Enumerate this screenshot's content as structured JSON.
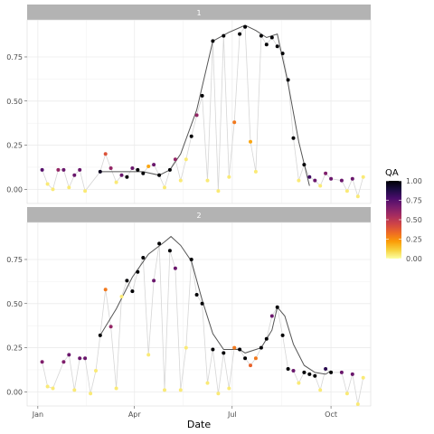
{
  "chart_data": {
    "type": "line+scatter (faceted)",
    "xlabel": "Date",
    "x_ticks": [
      {
        "label": "Jan",
        "value": 0
      },
      {
        "label": "Apr",
        "value": 90
      },
      {
        "label": "Jul",
        "value": 181
      },
      {
        "label": "Oct",
        "value": 273
      }
    ],
    "y_ticks": [
      "0.00",
      "0.25",
      "0.50",
      "0.75"
    ],
    "y_tick_values": [
      0,
      0.25,
      0.5,
      0.75
    ],
    "ylim": [
      -0.08,
      0.96
    ],
    "xlim": [
      -10,
      310
    ],
    "legend": {
      "title": "QA",
      "labels": [
        "1.00",
        "0.75",
        "0.50",
        "0.25",
        "0.00"
      ],
      "label_values": [
        1.0,
        0.75,
        0.5,
        0.25,
        0.0
      ],
      "range": [
        0,
        1
      ],
      "colors": [
        "#fcffa4",
        "#f7d13d",
        "#fb9b06",
        "#ed6925",
        "#cf4446",
        "#a52c60",
        "#781c6d",
        "#4a0c6b",
        "#1b0c41",
        "#000004"
      ]
    },
    "panels": [
      {
        "label": "1",
        "raw_series": [
          [
            4,
            0.11,
            0.75
          ],
          [
            9,
            0.03,
            0.05
          ],
          [
            14,
            0.0,
            0.05
          ],
          [
            19,
            0.11,
            0.6
          ],
          [
            24,
            0.11,
            0.7
          ],
          [
            29,
            0.01,
            0.05
          ],
          [
            34,
            0.08,
            0.7
          ],
          [
            39,
            0.11,
            0.7
          ],
          [
            44,
            -0.01,
            0.05
          ],
          [
            58,
            0.1,
            0.95
          ],
          [
            63,
            0.2,
            0.4
          ],
          [
            68,
            0.12,
            0.6
          ],
          [
            73,
            0.04,
            0.05
          ],
          [
            78,
            0.08,
            0.7
          ],
          [
            83,
            0.07,
            1.0
          ],
          [
            88,
            0.12,
            0.7
          ],
          [
            93,
            0.11,
            1.0
          ],
          [
            98,
            0.09,
            1.0
          ],
          [
            103,
            0.13,
            0.2
          ],
          [
            108,
            0.14,
            0.7
          ],
          [
            113,
            0.08,
            1.0
          ],
          [
            118,
            0.01,
            0.05
          ],
          [
            123,
            0.11,
            1.0
          ],
          [
            128,
            0.17,
            0.6
          ],
          [
            133,
            0.05,
            0.05
          ],
          [
            138,
            0.17,
            0.05
          ],
          [
            143,
            0.3,
            1.0
          ],
          [
            148,
            0.42,
            0.6
          ],
          [
            153,
            0.53,
            1.0
          ],
          [
            158,
            0.05,
            0.05
          ],
          [
            163,
            0.84,
            1.0
          ],
          [
            168,
            -0.01,
            0.05
          ],
          [
            173,
            0.87,
            1.0
          ],
          [
            178,
            0.07,
            0.05
          ],
          [
            183,
            0.38,
            0.3
          ],
          [
            188,
            0.88,
            1.0
          ],
          [
            193,
            0.92,
            1.0
          ],
          [
            198,
            0.27,
            0.2
          ],
          [
            203,
            0.1,
            0.05
          ],
          [
            208,
            0.87,
            1.0
          ],
          [
            213,
            0.82,
            1.0
          ],
          [
            218,
            0.86,
            1.0
          ],
          [
            223,
            0.81,
            1.0
          ],
          [
            228,
            0.77,
            1.0
          ],
          [
            233,
            0.62,
            1.0
          ],
          [
            238,
            0.29,
            1.0
          ],
          [
            243,
            0.05,
            0.05
          ],
          [
            248,
            0.14,
            1.0
          ],
          [
            253,
            0.07,
            0.8
          ],
          [
            258,
            0.05,
            0.7
          ],
          [
            263,
            0.02,
            0.05
          ],
          [
            268,
            0.09,
            0.65
          ],
          [
            273,
            0.06,
            0.7
          ],
          [
            283,
            0.05,
            0.7
          ],
          [
            288,
            -0.01,
            0.05
          ],
          [
            293,
            0.06,
            0.7
          ],
          [
            298,
            -0.04,
            0.05
          ],
          [
            303,
            0.07,
            0.05
          ]
        ],
        "smooth": [
          [
            58,
            0.1
          ],
          [
            80,
            0.1
          ],
          [
            98,
            0.1
          ],
          [
            113,
            0.08
          ],
          [
            123,
            0.11
          ],
          [
            133,
            0.2
          ],
          [
            148,
            0.45
          ],
          [
            163,
            0.84
          ],
          [
            178,
            0.89
          ],
          [
            193,
            0.93
          ],
          [
            203,
            0.9
          ],
          [
            213,
            0.86
          ],
          [
            223,
            0.88
          ],
          [
            233,
            0.6
          ],
          [
            243,
            0.27
          ],
          [
            253,
            0.02
          ]
        ]
      },
      {
        "label": "2",
        "raw_series": [
          [
            4,
            0.17,
            0.65
          ],
          [
            9,
            0.03,
            0.05
          ],
          [
            14,
            0.02,
            0.05
          ],
          [
            24,
            0.17,
            0.65
          ],
          [
            29,
            0.21,
            0.7
          ],
          [
            34,
            0.01,
            0.05
          ],
          [
            39,
            0.19,
            0.7
          ],
          [
            44,
            0.19,
            0.7
          ],
          [
            49,
            -0.01,
            0.05
          ],
          [
            54,
            0.12,
            0.05
          ],
          [
            58,
            0.32,
            1.0
          ],
          [
            63,
            0.58,
            0.3
          ],
          [
            68,
            0.37,
            0.6
          ],
          [
            73,
            0.02,
            0.05
          ],
          [
            78,
            0.54,
            0.05
          ],
          [
            83,
            0.63,
            1.0
          ],
          [
            88,
            0.57,
            1.0
          ],
          [
            93,
            0.68,
            1.0
          ],
          [
            98,
            0.76,
            1.0
          ],
          [
            103,
            0.21,
            0.05
          ],
          [
            108,
            0.63,
            0.7
          ],
          [
            113,
            0.84,
            1.0
          ],
          [
            118,
            0.01,
            0.05
          ],
          [
            123,
            0.8,
            1.0
          ],
          [
            128,
            0.7,
            0.7
          ],
          [
            133,
            0.01,
            0.05
          ],
          [
            138,
            0.25,
            0.05
          ],
          [
            143,
            0.75,
            1.0
          ],
          [
            148,
            0.55,
            1.0
          ],
          [
            153,
            0.5,
            1.0
          ],
          [
            158,
            0.05,
            0.05
          ],
          [
            163,
            0.24,
            1.0
          ],
          [
            168,
            -0.01,
            0.05
          ],
          [
            173,
            0.22,
            1.0
          ],
          [
            178,
            0.02,
            0.05
          ],
          [
            183,
            0.25,
            0.3
          ],
          [
            188,
            0.24,
            1.0
          ],
          [
            193,
            0.19,
            1.0
          ],
          [
            198,
            0.15,
            0.35
          ],
          [
            203,
            0.19,
            0.3
          ],
          [
            208,
            0.25,
            1.0
          ],
          [
            213,
            0.3,
            1.0
          ],
          [
            218,
            0.43,
            0.7
          ],
          [
            223,
            0.48,
            1.0
          ],
          [
            228,
            0.32,
            1.0
          ],
          [
            233,
            0.13,
            1.0
          ],
          [
            238,
            0.12,
            0.7
          ],
          [
            243,
            0.05,
            0.05
          ],
          [
            248,
            0.11,
            1.0
          ],
          [
            253,
            0.1,
            1.0
          ],
          [
            258,
            0.09,
            1.0
          ],
          [
            263,
            0.01,
            0.05
          ],
          [
            268,
            0.13,
            0.85
          ],
          [
            273,
            0.11,
            1.0
          ],
          [
            283,
            0.11,
            0.7
          ],
          [
            288,
            -0.01,
            0.05
          ],
          [
            293,
            0.1,
            0.7
          ],
          [
            298,
            -0.07,
            0.05
          ],
          [
            303,
            0.08,
            0.05
          ]
        ],
        "smooth": [
          [
            58,
            0.32
          ],
          [
            73,
            0.47
          ],
          [
            88,
            0.65
          ],
          [
            103,
            0.78
          ],
          [
            118,
            0.85
          ],
          [
            124,
            0.88
          ],
          [
            133,
            0.83
          ],
          [
            143,
            0.74
          ],
          [
            153,
            0.52
          ],
          [
            163,
            0.33
          ],
          [
            173,
            0.24
          ],
          [
            188,
            0.24
          ],
          [
            193,
            0.22
          ],
          [
            208,
            0.25
          ],
          [
            218,
            0.35
          ],
          [
            223,
            0.48
          ],
          [
            230,
            0.43
          ],
          [
            238,
            0.27
          ],
          [
            248,
            0.15
          ],
          [
            258,
            0.11
          ],
          [
            268,
            0.1
          ],
          [
            273,
            0.12
          ]
        ]
      }
    ]
  }
}
